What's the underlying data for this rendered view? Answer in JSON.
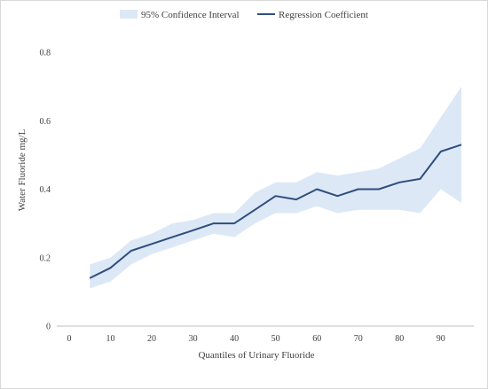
{
  "chart_data": {
    "type": "line",
    "xlabel": "Quantiles of Urinary Fluoride",
    "ylabel": "Water Fluoride mg/L",
    "xlim": [
      -3,
      98
    ],
    "ylim": [
      0,
      0.8
    ],
    "x_ticks": [
      0,
      10,
      20,
      30,
      40,
      50,
      60,
      70,
      80,
      90
    ],
    "y_ticks": [
      0,
      0.2,
      0.4,
      0.6,
      0.8
    ],
    "y_tick_labels": [
      "0",
      "0.2",
      "0.4",
      "0.6",
      "0.8"
    ],
    "grid": false,
    "legend_position": "top",
    "x": [
      5,
      10,
      15,
      20,
      25,
      30,
      35,
      40,
      45,
      50,
      55,
      60,
      65,
      70,
      75,
      80,
      85,
      90,
      95
    ],
    "series": [
      {
        "name": "Regression Coefficient",
        "kind": "line",
        "color": "#2e4e7e",
        "values": [
          0.14,
          0.17,
          0.22,
          0.24,
          0.26,
          0.28,
          0.3,
          0.3,
          0.34,
          0.38,
          0.37,
          0.4,
          0.38,
          0.4,
          0.4,
          0.42,
          0.43,
          0.51,
          0.53
        ]
      },
      {
        "name": "95% Confidence Interval",
        "kind": "band",
        "color": "#dde8f6",
        "lower": [
          0.11,
          0.13,
          0.18,
          0.21,
          0.23,
          0.25,
          0.27,
          0.26,
          0.3,
          0.33,
          0.33,
          0.35,
          0.33,
          0.34,
          0.34,
          0.34,
          0.33,
          0.4,
          0.36
        ],
        "upper": [
          0.18,
          0.2,
          0.25,
          0.27,
          0.3,
          0.31,
          0.33,
          0.33,
          0.39,
          0.42,
          0.42,
          0.45,
          0.44,
          0.45,
          0.46,
          0.49,
          0.52,
          0.61,
          0.7
        ]
      }
    ]
  }
}
